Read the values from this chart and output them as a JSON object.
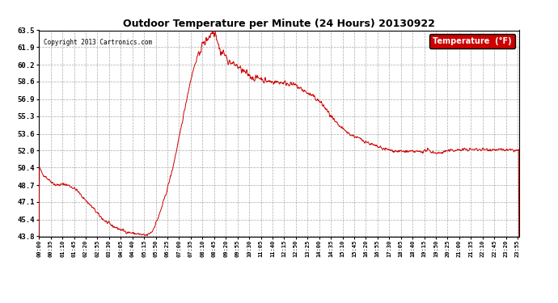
{
  "title": "Outdoor Temperature per Minute (24 Hours) 20130922",
  "copyright": "Copyright 2013 Cartronics.com",
  "legend_label": "Temperature  (°F)",
  "line_color": "#cc0000",
  "background_color": "#ffffff",
  "grid_color": "#aaaaaa",
  "ylim": [
    43.8,
    63.5
  ],
  "yticks": [
    43.8,
    45.4,
    47.1,
    48.7,
    50.4,
    52.0,
    53.6,
    55.3,
    56.9,
    58.6,
    60.2,
    61.9,
    63.5
  ],
  "x_tick_interval": 35,
  "total_minutes": 1440,
  "control_points": [
    [
      0,
      50.4
    ],
    [
      10,
      49.8
    ],
    [
      30,
      49.2
    ],
    [
      50,
      48.7
    ],
    [
      70,
      48.75
    ],
    [
      75,
      48.8
    ],
    [
      90,
      48.65
    ],
    [
      110,
      48.3
    ],
    [
      130,
      47.6
    ],
    [
      150,
      46.9
    ],
    [
      165,
      46.4
    ],
    [
      180,
      45.8
    ],
    [
      200,
      45.2
    ],
    [
      220,
      44.8
    ],
    [
      240,
      44.5
    ],
    [
      260,
      44.25
    ],
    [
      280,
      44.1
    ],
    [
      300,
      44.0
    ],
    [
      315,
      43.88
    ],
    [
      325,
      43.92
    ],
    [
      340,
      44.3
    ],
    [
      360,
      45.8
    ],
    [
      380,
      47.8
    ],
    [
      400,
      50.2
    ],
    [
      420,
      53.2
    ],
    [
      440,
      56.5
    ],
    [
      455,
      58.8
    ],
    [
      465,
      60.0
    ],
    [
      475,
      61.0
    ],
    [
      485,
      61.8
    ],
    [
      495,
      62.3
    ],
    [
      505,
      62.8
    ],
    [
      515,
      63.1
    ],
    [
      520,
      63.4
    ],
    [
      525,
      63.5
    ],
    [
      530,
      63.3
    ],
    [
      535,
      62.6
    ],
    [
      540,
      61.8
    ],
    [
      548,
      61.3
    ],
    [
      555,
      61.4
    ],
    [
      562,
      60.8
    ],
    [
      570,
      60.5
    ],
    [
      580,
      60.3
    ],
    [
      590,
      60.2
    ],
    [
      600,
      59.9
    ],
    [
      615,
      59.5
    ],
    [
      630,
      59.2
    ],
    [
      645,
      58.9
    ],
    [
      660,
      59.0
    ],
    [
      675,
      58.7
    ],
    [
      690,
      58.6
    ],
    [
      710,
      58.55
    ],
    [
      730,
      58.5
    ],
    [
      750,
      58.4
    ],
    [
      770,
      58.2
    ],
    [
      790,
      57.8
    ],
    [
      810,
      57.4
    ],
    [
      830,
      57.0
    ],
    [
      850,
      56.4
    ],
    [
      870,
      55.5
    ],
    [
      890,
      54.6
    ],
    [
      910,
      54.1
    ],
    [
      930,
      53.6
    ],
    [
      950,
      53.3
    ],
    [
      970,
      53.0
    ],
    [
      990,
      52.7
    ],
    [
      1010,
      52.4
    ],
    [
      1030,
      52.2
    ],
    [
      1050,
      52.05
    ],
    [
      1070,
      51.95
    ],
    [
      1090,
      51.92
    ],
    [
      1110,
      51.9
    ],
    [
      1130,
      51.88
    ],
    [
      1150,
      51.92
    ],
    [
      1165,
      52.05
    ],
    [
      1180,
      51.85
    ],
    [
      1200,
      51.75
    ],
    [
      1220,
      51.95
    ],
    [
      1250,
      52.05
    ],
    [
      1280,
      52.1
    ],
    [
      1320,
      52.1
    ],
    [
      1360,
      52.1
    ],
    [
      1400,
      52.05
    ],
    [
      1439,
      52.0
    ]
  ]
}
